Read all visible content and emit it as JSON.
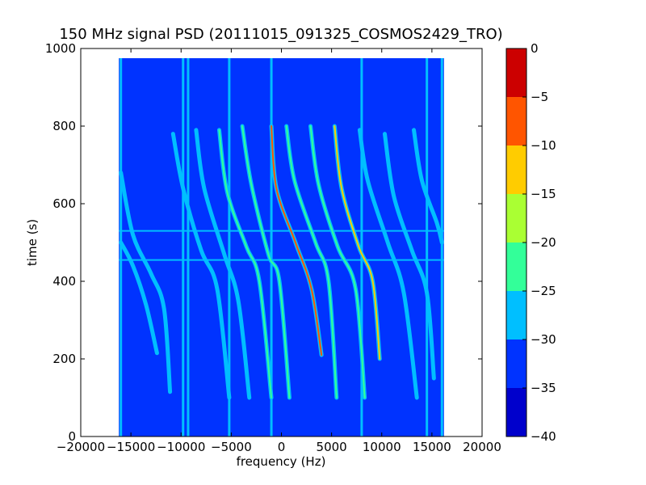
{
  "chart_data": {
    "type": "heatmap",
    "title": "150 MHz signal PSD (20111015_091325_COSMOS2429_TRO)",
    "xlabel": "frequency (Hz)",
    "ylabel": "time (s)",
    "xlim": [
      -20000,
      20000
    ],
    "ylim": [
      0,
      1000
    ],
    "x_ticks": [
      -20000,
      -15000,
      -10000,
      -5000,
      0,
      5000,
      10000,
      15000,
      20000
    ],
    "x_tick_labels": [
      "−20000",
      "−15000",
      "−10000",
      "−5000",
      "0",
      "5000",
      "10000",
      "15000",
      "20000"
    ],
    "y_ticks": [
      0,
      200,
      400,
      600,
      800,
      1000
    ],
    "y_tick_labels": [
      "0",
      "200",
      "400",
      "600",
      "800",
      "1000"
    ],
    "data_extent": {
      "x": [
        -16200,
        16200
      ],
      "y": [
        0,
        975
      ]
    },
    "background_level": -33,
    "colorbar": {
      "levels": [
        -40,
        -35,
        -30,
        -25,
        -20,
        -15,
        -10,
        -5,
        0
      ],
      "tick_labels": [
        "−40",
        "−35",
        "−30",
        "−25",
        "−20",
        "−15",
        "−10",
        "−5",
        "0"
      ],
      "colors": [
        "#0000cc",
        "#0033ff",
        "#00bfff",
        "#33ff99",
        "#aaff33",
        "#ffcc00",
        "#ff5500",
        "#cc0000"
      ]
    },
    "vertical_lines": [
      {
        "x": -16000,
        "level": -28
      },
      {
        "x": -9800,
        "level": -28
      },
      {
        "x": -9300,
        "level": -30
      },
      {
        "x": -5200,
        "level": -28
      },
      {
        "x": -1000,
        "level": -28
      },
      {
        "x": 8000,
        "level": -28
      },
      {
        "x": 14500,
        "level": -28
      },
      {
        "x": 16000,
        "level": -28
      }
    ],
    "horizontal_lines": [
      {
        "y": 455,
        "level": -28
      },
      {
        "y": 530,
        "level": -30
      }
    ],
    "series": [
      {
        "level": -28,
        "points": [
          [
            -16000,
            680
          ],
          [
            -14800,
            520
          ],
          [
            -13000,
            420
          ],
          [
            -11700,
            330
          ],
          [
            -11100,
            115
          ]
        ]
      },
      {
        "level": -28,
        "points": [
          [
            -16000,
            500
          ],
          [
            -14800,
            440
          ],
          [
            -13500,
            340
          ],
          [
            -12400,
            215
          ]
        ]
      },
      {
        "level": -28,
        "points": [
          [
            -10800,
            780
          ],
          [
            -9800,
            640
          ],
          [
            -8000,
            480
          ],
          [
            -6400,
            380
          ],
          [
            -5200,
            100
          ]
        ]
      },
      {
        "level": -28,
        "points": [
          [
            -8500,
            790
          ],
          [
            -7700,
            640
          ],
          [
            -5700,
            470
          ],
          [
            -4300,
            350
          ],
          [
            -3200,
            100
          ]
        ]
      },
      {
        "level": -22,
        "points": [
          [
            -6200,
            790
          ],
          [
            -5400,
            630
          ],
          [
            -3500,
            490
          ],
          [
            -2200,
            400
          ],
          [
            -1000,
            100
          ]
        ]
      },
      {
        "level": -22,
        "points": [
          [
            -3900,
            800
          ],
          [
            -3000,
            650
          ],
          [
            -1300,
            470
          ],
          [
            -200,
            400
          ],
          [
            800,
            100
          ]
        ]
      },
      {
        "level": -10,
        "points": [
          [
            -1000,
            800
          ],
          [
            -500,
            640
          ],
          [
            1400,
            500
          ],
          [
            3000,
            380
          ],
          [
            4000,
            210
          ]
        ]
      },
      {
        "level": -22,
        "points": [
          [
            500,
            800
          ],
          [
            1300,
            660
          ],
          [
            3400,
            500
          ],
          [
            4700,
            400
          ],
          [
            5500,
            100
          ]
        ]
      },
      {
        "level": -22,
        "points": [
          [
            2900,
            800
          ],
          [
            3700,
            650
          ],
          [
            5600,
            490
          ],
          [
            7400,
            380
          ],
          [
            8300,
            100
          ]
        ]
      },
      {
        "level": -15,
        "points": [
          [
            5300,
            800
          ],
          [
            6000,
            640
          ],
          [
            7700,
            490
          ],
          [
            9100,
            400
          ],
          [
            9800,
            200
          ]
        ]
      },
      {
        "level": -28,
        "points": [
          [
            7800,
            790
          ],
          [
            8600,
            660
          ],
          [
            10600,
            500
          ],
          [
            12200,
            370
          ],
          [
            13500,
            100
          ]
        ]
      },
      {
        "level": -28,
        "points": [
          [
            10300,
            780
          ],
          [
            11200,
            620
          ],
          [
            13000,
            480
          ],
          [
            14500,
            370
          ],
          [
            15200,
            150
          ]
        ]
      },
      {
        "level": -28,
        "points": [
          [
            13200,
            790
          ],
          [
            14000,
            660
          ],
          [
            15500,
            550
          ],
          [
            16000,
            500
          ]
        ]
      }
    ]
  }
}
